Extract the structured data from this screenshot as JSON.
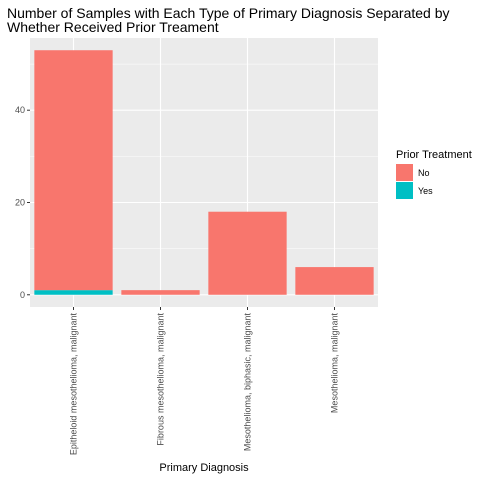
{
  "chart_data": {
    "type": "bar",
    "stacked": true,
    "title_lines": [
      "Number of Samples with Each Type of Primary Diagnosis Separated by",
      "Whether Received Prior Treament"
    ],
    "xlabel": "Primary Diagnosis",
    "ylabel": "",
    "categories": [
      "Epitheloid mesothelioma, malignant",
      "Fibrous mesothelioma, malignant",
      "Mesothelioma, biphasic, malignant",
      "Mesothelioma, malignant"
    ],
    "series": [
      {
        "name": "No",
        "color": "#F8766D",
        "values": [
          52,
          1,
          18,
          6
        ]
      },
      {
        "name": "Yes",
        "color": "#00BFC4",
        "values": [
          1,
          0,
          0,
          0
        ]
      }
    ],
    "yticks": [
      0,
      20,
      40
    ],
    "ylim": [
      -2.65,
      55.65
    ],
    "grid": true,
    "legend": {
      "title": "Prior Treatment",
      "position": "right"
    }
  }
}
